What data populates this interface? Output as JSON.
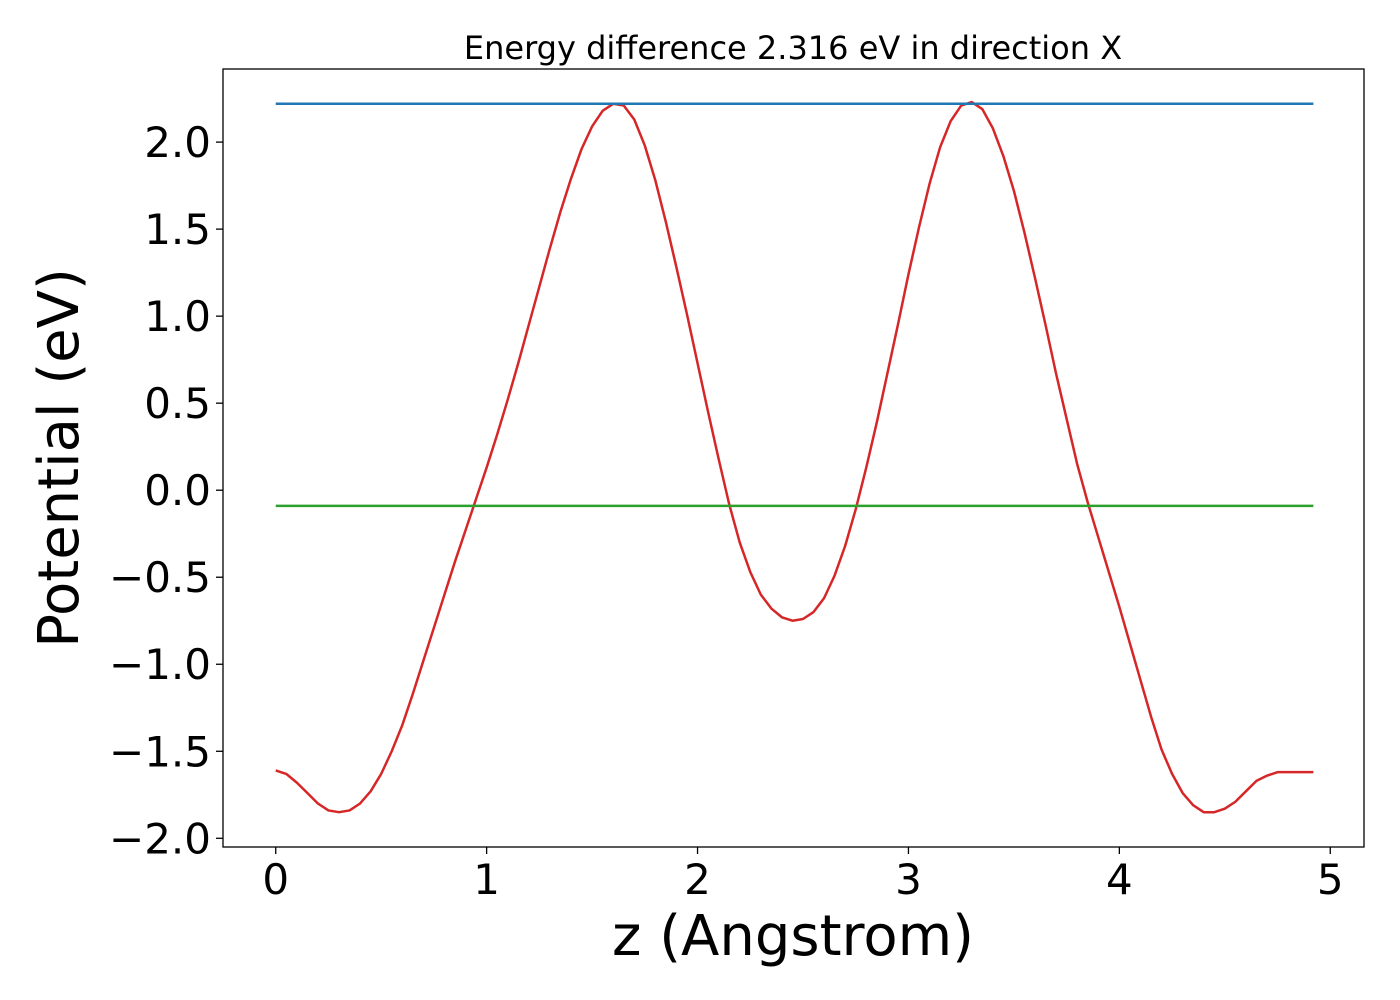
{
  "chart_data": {
    "type": "line",
    "title": "Energy difference 2.316 eV in direction X",
    "xlabel": "z (Angstrom)",
    "ylabel": "Potential (eV)",
    "xlim": [
      -0.25,
      5.16
    ],
    "ylim": [
      -2.05,
      2.42
    ],
    "xticks": [
      {
        "value": 0,
        "label": "0"
      },
      {
        "value": 1,
        "label": "1"
      },
      {
        "value": 2,
        "label": "2"
      },
      {
        "value": 3,
        "label": "3"
      },
      {
        "value": 4,
        "label": "4"
      },
      {
        "value": 5,
        "label": "5"
      }
    ],
    "yticks": [
      {
        "value": 2.0,
        "label": "2.0"
      },
      {
        "value": 1.5,
        "label": "1.5"
      },
      {
        "value": 1.0,
        "label": "1.0"
      },
      {
        "value": 0.5,
        "label": "0.5"
      },
      {
        "value": 0.0,
        "label": "0.0"
      },
      {
        "value": -0.5,
        "label": "−0.5"
      },
      {
        "value": -1.0,
        "label": "−1.0"
      },
      {
        "value": -1.5,
        "label": "−1.5"
      },
      {
        "value": -2.0,
        "label": "−2.0"
      }
    ],
    "grid": false,
    "legend": "none",
    "series": [
      {
        "color": "#d62728",
        "x": [
          0.0,
          0.05,
          0.1,
          0.15,
          0.2,
          0.25,
          0.3,
          0.35,
          0.4,
          0.45,
          0.5,
          0.55,
          0.6,
          0.65,
          0.7,
          0.75,
          0.8,
          0.85,
          0.9,
          0.95,
          1.0,
          1.05,
          1.1,
          1.15,
          1.2,
          1.25,
          1.3,
          1.35,
          1.4,
          1.45,
          1.5,
          1.55,
          1.6,
          1.65,
          1.7,
          1.75,
          1.8,
          1.85,
          1.9,
          1.95,
          2.0,
          2.05,
          2.1,
          2.15,
          2.2,
          2.25,
          2.3,
          2.35,
          2.4,
          2.45,
          2.5,
          2.55,
          2.6,
          2.65,
          2.7,
          2.75,
          2.8,
          2.85,
          2.9,
          2.95,
          3.0,
          3.05,
          3.1,
          3.15,
          3.2,
          3.25,
          3.3,
          3.35,
          3.4,
          3.45,
          3.5,
          3.55,
          3.6,
          3.65,
          3.7,
          3.75,
          3.8,
          3.85,
          3.9,
          3.95,
          4.0,
          4.05,
          4.1,
          4.15,
          4.2,
          4.25,
          4.3,
          4.35,
          4.4,
          4.45,
          4.5,
          4.55,
          4.6,
          4.65,
          4.7,
          4.75,
          4.8,
          4.85,
          4.9,
          4.92
        ],
        "y": [
          -1.61,
          -1.63,
          -1.68,
          -1.74,
          -1.8,
          -1.84,
          -1.85,
          -1.84,
          -1.8,
          -1.73,
          -1.63,
          -1.5,
          -1.35,
          -1.17,
          -0.98,
          -0.79,
          -0.6,
          -0.41,
          -0.23,
          -0.05,
          0.13,
          0.32,
          0.52,
          0.73,
          0.95,
          1.17,
          1.39,
          1.6,
          1.79,
          1.96,
          2.09,
          2.18,
          2.22,
          2.21,
          2.13,
          1.98,
          1.78,
          1.54,
          1.28,
          1.01,
          0.73,
          0.45,
          0.18,
          -0.08,
          -0.3,
          -0.47,
          -0.6,
          -0.68,
          -0.73,
          -0.75,
          -0.74,
          -0.7,
          -0.62,
          -0.49,
          -0.32,
          -0.11,
          0.13,
          0.39,
          0.67,
          0.95,
          1.24,
          1.51,
          1.76,
          1.97,
          2.12,
          2.21,
          2.23,
          2.19,
          2.08,
          1.92,
          1.72,
          1.48,
          1.22,
          0.95,
          0.67,
          0.41,
          0.15,
          -0.07,
          -0.27,
          -0.47,
          -0.67,
          -0.88,
          -1.09,
          -1.3,
          -1.49,
          -1.63,
          -1.74,
          -1.81,
          -1.85,
          -1.85,
          -1.83,
          -1.79,
          -1.73,
          -1.67,
          -1.64,
          -1.62,
          -1.62,
          -1.62,
          -1.62,
          -1.62
        ]
      },
      {
        "color": "#1f77b4",
        "x": [
          0.0,
          4.92
        ],
        "y": [
          2.22,
          2.22
        ]
      },
      {
        "color": "#2ca02c",
        "x": [
          0.0,
          4.92
        ],
        "y": [
          -0.09,
          -0.09
        ]
      }
    ]
  }
}
